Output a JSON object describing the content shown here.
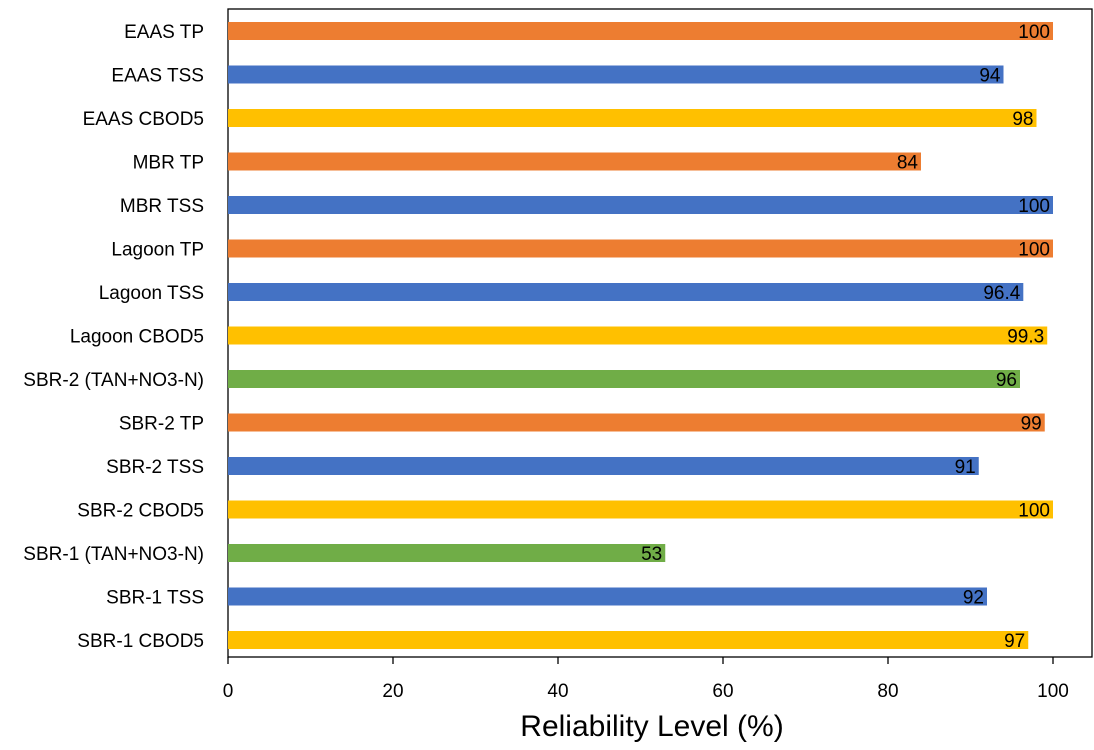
{
  "chart_data": {
    "type": "bar",
    "orientation": "horizontal",
    "title": "",
    "xlabel": "Reliability Level (%)",
    "ylabel": "",
    "xlim": [
      0,
      105
    ],
    "x_ticks": [
      0,
      20,
      40,
      60,
      80,
      100
    ],
    "x_tick_labels": [
      "0",
      "20",
      "40",
      "60",
      "80",
      "100"
    ],
    "grid": false,
    "legend": "none",
    "categories": [
      "EAAS TP",
      "EAAS TSS",
      "EAAS CBOD5",
      "MBR TP",
      "MBR TSS",
      "Lagoon TP",
      "Lagoon TSS",
      "Lagoon CBOD5",
      "SBR-2 (TAN+NO3-N)",
      "SBR-2 TP",
      "SBR-2 TSS",
      "SBR-2 CBOD5",
      "SBR-1 (TAN+NO3-N)",
      "SBR-1 TSS",
      "SBR-1 CBOD5"
    ],
    "values": [
      100,
      94,
      98,
      84,
      100,
      100,
      96.4,
      99.3,
      96,
      99,
      91,
      100,
      53,
      92,
      97
    ],
    "value_labels": [
      "100",
      "94",
      "98",
      "84",
      "100",
      "100",
      "96.4",
      "99.3",
      "96",
      "99",
      "91",
      "100",
      "53",
      "92",
      "97"
    ],
    "bar_colors": [
      "#ED7D31",
      "#4472C4",
      "#FFC000",
      "#ED7D31",
      "#4472C4",
      "#ED7D31",
      "#4472C4",
      "#FFC000",
      "#70AD47",
      "#ED7D31",
      "#4472C4",
      "#FFC000",
      "#70AD47",
      "#4472C4",
      "#FFC000"
    ]
  }
}
